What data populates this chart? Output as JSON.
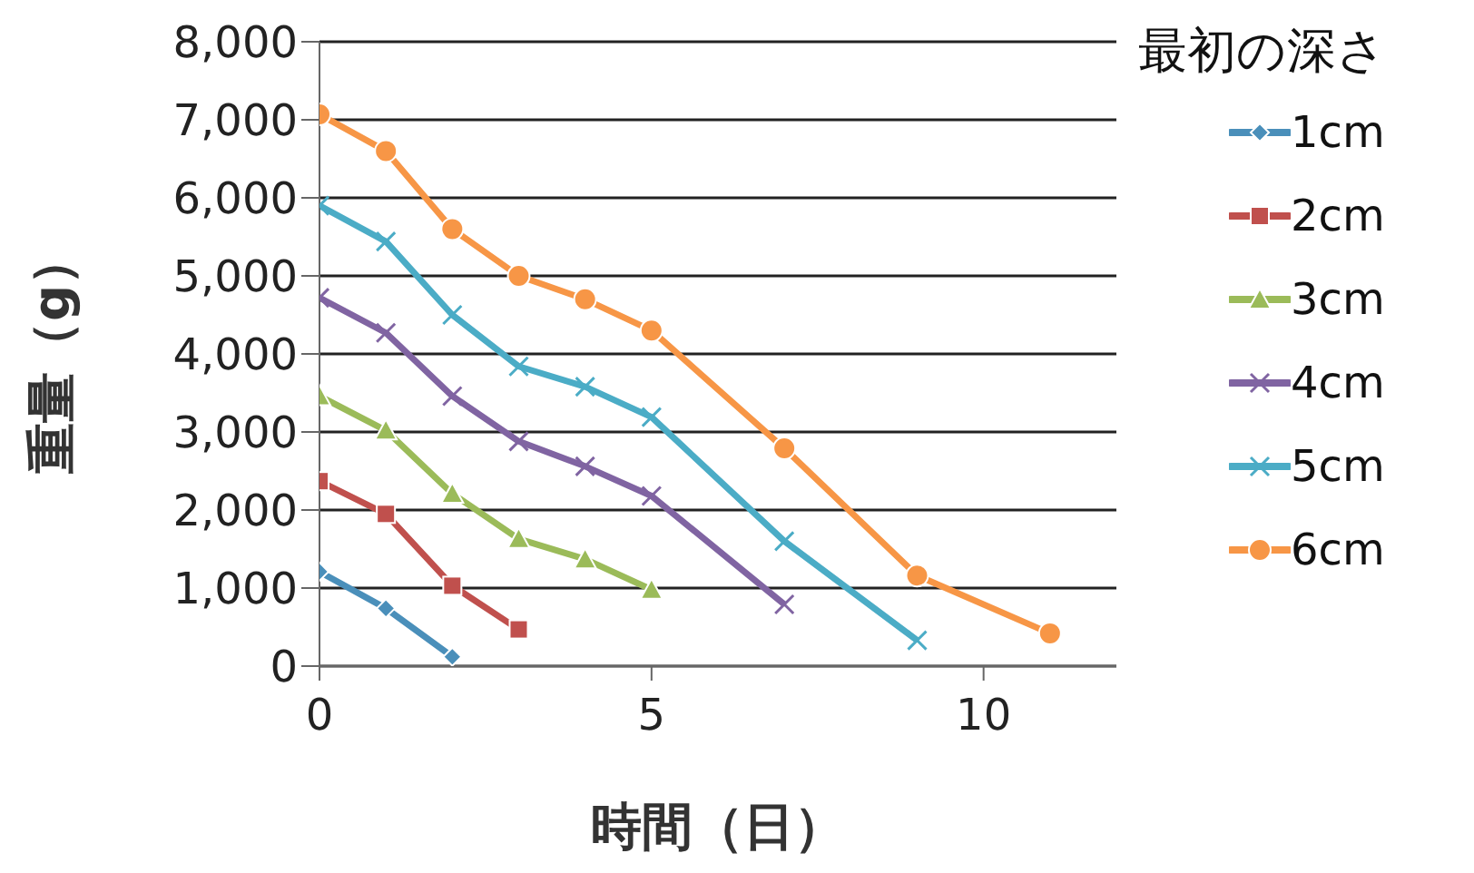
{
  "chart_data": {
    "type": "line",
    "xlabel": "時間（日）",
    "ylabel": "重量（g）",
    "legend_title": "最初の深さ",
    "xlim": [
      0,
      12
    ],
    "xticks": [
      0,
      5,
      10
    ],
    "ylim": [
      0,
      8000
    ],
    "yticks": [
      {
        "value": 0,
        "label": "0"
      },
      {
        "value": 1000,
        "label": "1,000"
      },
      {
        "value": 2000,
        "label": "2,000"
      },
      {
        "value": 3000,
        "label": "3,000"
      },
      {
        "value": 4000,
        "label": "4,000"
      },
      {
        "value": 5000,
        "label": "5,000"
      },
      {
        "value": 6000,
        "label": "6,000"
      },
      {
        "value": 7000,
        "label": "7,000"
      },
      {
        "value": 8000,
        "label": "8,000"
      }
    ],
    "grid": "y",
    "legend": "right",
    "series": [
      {
        "name": "1cm",
        "color": "#4a8fba",
        "marker": "diamond",
        "x": [
          0,
          1,
          2
        ],
        "values": [
          1210,
          740,
          120
        ]
      },
      {
        "name": "2cm",
        "color": "#c0504d",
        "marker": "square",
        "x": [
          0,
          1,
          2,
          3
        ],
        "values": [
          2370,
          1950,
          1030,
          470
        ]
      },
      {
        "name": "3cm",
        "color": "#9bbb59",
        "marker": "triangle",
        "x": [
          0,
          1,
          2,
          3,
          4,
          5
        ],
        "values": [
          3460,
          3020,
          2210,
          1630,
          1370,
          980
        ]
      },
      {
        "name": "4cm",
        "color": "#8064a2",
        "marker": "cross",
        "x": [
          0,
          1,
          2,
          3,
          4,
          5,
          7
        ],
        "values": [
          4720,
          4270,
          3460,
          2880,
          2560,
          2180,
          790
        ]
      },
      {
        "name": "5cm",
        "color": "#4bacc6",
        "marker": "cross",
        "x": [
          0,
          1,
          2,
          3,
          4,
          5,
          7,
          9
        ],
        "values": [
          5900,
          5440,
          4500,
          3840,
          3580,
          3190,
          1600,
          330
        ]
      },
      {
        "name": "6cm",
        "color": "#f79646",
        "marker": "circle",
        "x": [
          0,
          1,
          2,
          3,
          4,
          5,
          7,
          9,
          11
        ],
        "values": [
          7070,
          6600,
          5600,
          5000,
          4700,
          4300,
          2790,
          1160,
          420
        ]
      }
    ]
  }
}
